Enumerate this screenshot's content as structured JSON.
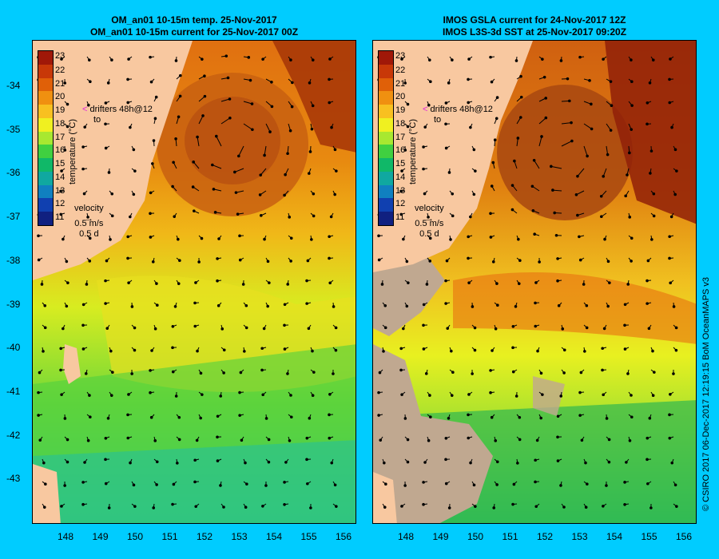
{
  "left": {
    "title_line1": "OM_an01 10-15m temp. 25-Nov-2017",
    "title_line2": "OM_an01 10-15m current for 25-Nov-2017 00Z"
  },
  "right": {
    "title_line1": "IMOS GSLA current for 24-Nov-2017 12Z",
    "title_line2": "IMOS L3S-3d SST at 25-Nov-2017 09:20Z"
  },
  "y_ticks": [
    "-34",
    "-35",
    "-36",
    "-37",
    "-38",
    "-39",
    "-40",
    "-41",
    "-42",
    "-43"
  ],
  "x_ticks": [
    "148",
    "149",
    "150",
    "151",
    "152",
    "153",
    "154",
    "155",
    "156"
  ],
  "colorbar": {
    "title": "temperature (°C)",
    "labels": [
      "23",
      "22",
      "21",
      "20",
      "19",
      "18",
      "17",
      "16",
      "15",
      "14",
      "13",
      "12",
      "11"
    ],
    "colors": [
      "#a01808",
      "#c83808",
      "#e06008",
      "#f09010",
      "#f8c020",
      "#f0f020",
      "#a8e830",
      "#40d040",
      "#10b868",
      "#10a8a0",
      "#1080c0",
      "#1040b0",
      "#102080"
    ]
  },
  "legend": {
    "drifters_line1": "drifters 48h@12",
    "drifters_line2": "to",
    "velocity": "velocity",
    "speed": "0.5 m/s",
    "duration": "0.5 d"
  },
  "credit": "© CSIRO 2017   06-Dec-2017 12:19:15 BoM OceanMAPS v3",
  "colors": {
    "background": "#00ccff",
    "land": "#f8c8a0",
    "nodata": "#c0a890"
  }
}
